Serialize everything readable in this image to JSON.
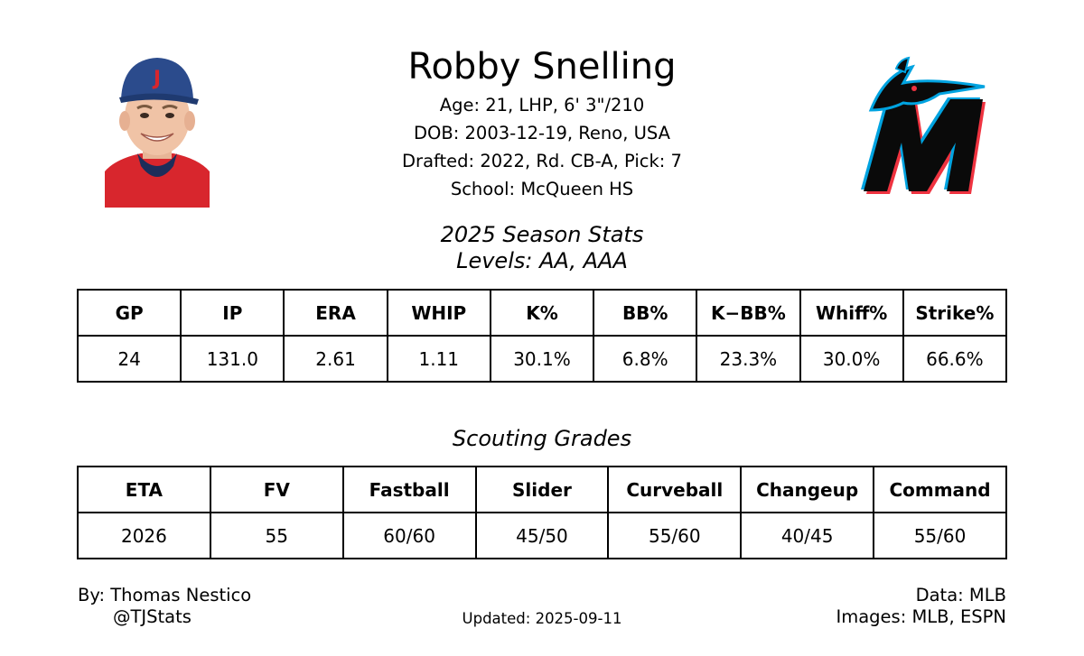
{
  "player": {
    "name": "Robby Snelling",
    "bio": [
      "Age: 21, LHP, 6' 3\"/210",
      "DOB: 2003-12-19, Reno, USA",
      "Drafted: 2022, Rd. CB-A, Pick: 7",
      "School: McQueen HS"
    ],
    "cap_letter": "J"
  },
  "team_logo": {
    "name": "marlins-logo",
    "colors": {
      "primary": "#000000",
      "blue": "#00a3e0",
      "red": "#ef3340"
    }
  },
  "season": {
    "title": "2025 Season Stats",
    "levels": "Levels: AA, AAA",
    "headers": [
      "GP",
      "IP",
      "ERA",
      "WHIP",
      "K%",
      "BB%",
      "K−BB%",
      "Whiff%",
      "Strike%"
    ],
    "values": [
      "24",
      "131.0",
      "2.61",
      "1.11",
      "30.1%",
      "6.8%",
      "23.3%",
      "30.0%",
      "66.6%"
    ]
  },
  "grades": {
    "title": "Scouting Grades",
    "headers": [
      "ETA",
      "FV",
      "Fastball",
      "Slider",
      "Curveball",
      "Changeup",
      "Command"
    ],
    "values": [
      "2026",
      "55",
      "60/60",
      "45/50",
      "55/60",
      "40/45",
      "55/60"
    ]
  },
  "footer": {
    "by": "By: Thomas Nestico",
    "handle": "@TJStats",
    "updated": "Updated: 2025-09-11",
    "data_source": "Data: MLB",
    "images_source": "Images: MLB, ESPN"
  }
}
